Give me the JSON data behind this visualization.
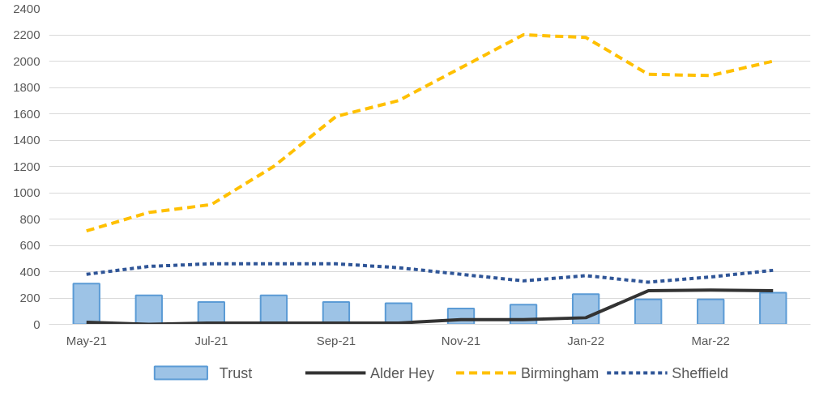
{
  "chart_data": {
    "type": "bar",
    "categories": [
      "May-21",
      null,
      "Jul-21",
      null,
      "Sep-21",
      null,
      "Nov-21",
      null,
      "Jan-22",
      null,
      "Mar-22",
      null
    ],
    "series": [
      {
        "name": "Trust",
        "color": "#9dc3e6",
        "values": [
          310,
          220,
          170,
          220,
          170,
          160,
          120,
          150,
          230,
          190,
          190,
          240
        ]
      },
      {
        "name": "Alder Hey",
        "type": "line",
        "color": "#333333",
        "line_style": "solid",
        "values": [
          15,
          0,
          10,
          10,
          10,
          10,
          35,
          35,
          50,
          255,
          260,
          255
        ]
      },
      {
        "name": "Birmingham",
        "type": "line",
        "color": "#ffc000",
        "line_style": "dashed",
        "values": [
          710,
          850,
          910,
          1200,
          1580,
          1700,
          1950,
          2200,
          2180,
          1900,
          1890,
          2000
        ]
      },
      {
        "name": "Sheffield",
        "type": "line",
        "color": "#2f5597",
        "line_style": "dotted",
        "values": [
          380,
          440,
          460,
          460,
          460,
          430,
          380,
          330,
          370,
          320,
          360,
          410
        ]
      }
    ],
    "ylim": [
      0,
      2400
    ],
    "yticks": [
      0,
      200,
      400,
      600,
      800,
      1000,
      1200,
      1400,
      1600,
      1800,
      2000,
      2200,
      2400
    ],
    "grid": "y",
    "legend": "bottom"
  }
}
